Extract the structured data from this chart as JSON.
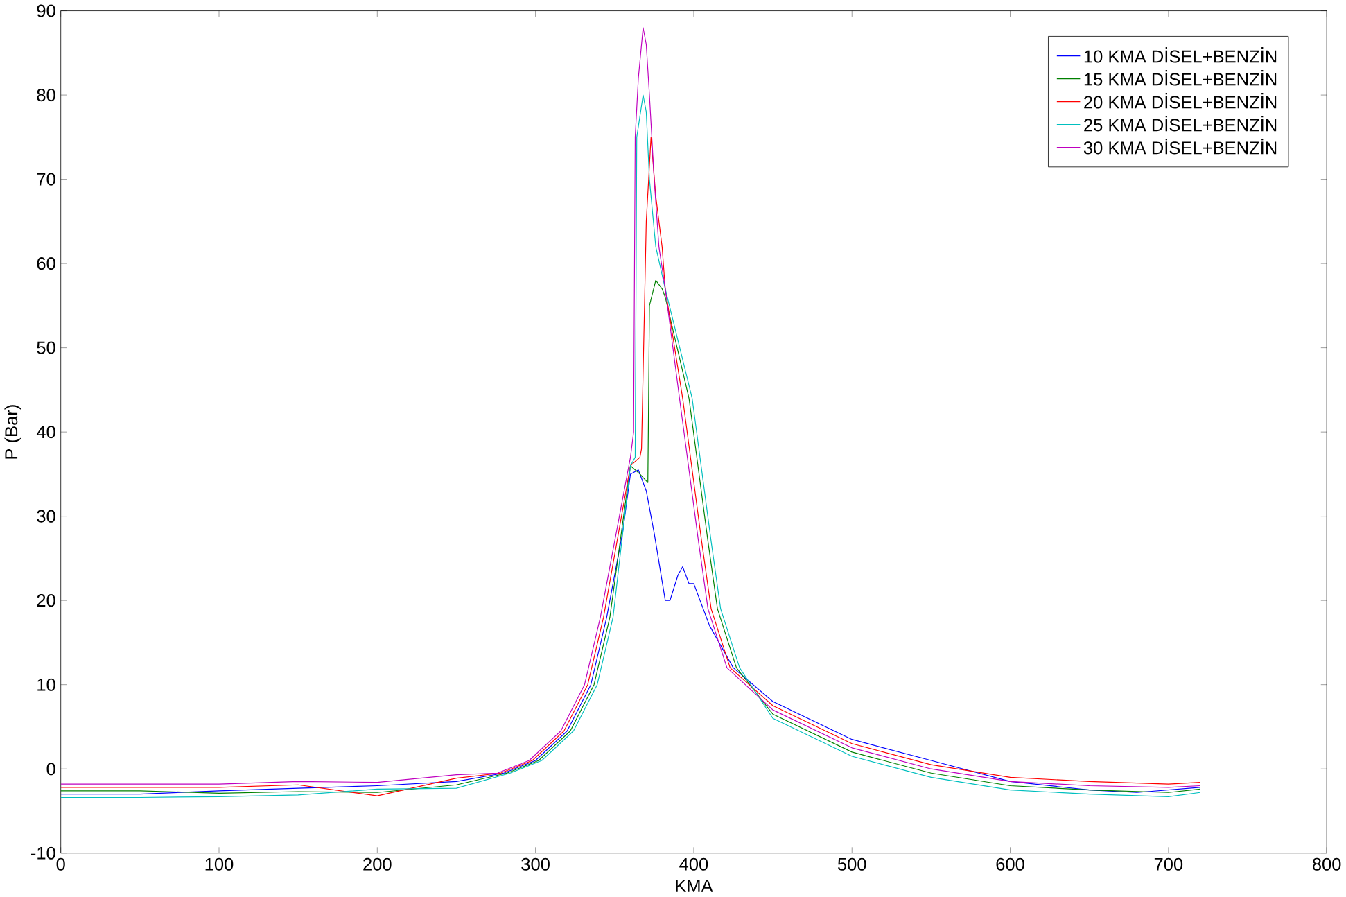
{
  "chart_data": {
    "type": "line",
    "xlabel": "KMA",
    "ylabel": "P (Bar)",
    "xlim": [
      0,
      800
    ],
    "ylim": [
      -10,
      90
    ],
    "xticks": [
      0,
      100,
      200,
      300,
      400,
      500,
      600,
      700,
      800
    ],
    "yticks": [
      -10,
      0,
      10,
      20,
      30,
      40,
      50,
      60,
      70,
      80,
      90
    ],
    "grid": false,
    "legend": "top right",
    "line_style": "solid",
    "marker": "none",
    "series": [
      {
        "name": "10 KMA DİSEL+BENZİN",
        "color": "#0000ff",
        "x": [
          0,
          50,
          100,
          150,
          200,
          250,
          280,
          300,
          320,
          335,
          345,
          355,
          360,
          365,
          370,
          375,
          382,
          385,
          390,
          393,
          397,
          400,
          410,
          425,
          450,
          500,
          550,
          600,
          650,
          680,
          720
        ],
        "values": [
          -3,
          -3,
          -2.6,
          -2.3,
          -2,
          -1.5,
          -0.5,
          1,
          4.5,
          10,
          18,
          28,
          35,
          35.5,
          33,
          28,
          20,
          20,
          23,
          24,
          22,
          22,
          17,
          12,
          8,
          3.5,
          1,
          -1.5,
          -2.5,
          -2.8,
          -2.2
        ]
      },
      {
        "name": "15 KMA DİSEL+BENZİN",
        "color": "#008000",
        "x": [
          0,
          50,
          100,
          150,
          200,
          250,
          282,
          302,
          322,
          337,
          347,
          360,
          366,
          371,
          372,
          376,
          380,
          382,
          397,
          409,
          415,
          427,
          450,
          500,
          550,
          600,
          650,
          700,
          720
        ],
        "values": [
          -2.6,
          -2.6,
          -2.9,
          -2.7,
          -2.8,
          -1.9,
          -0.5,
          1,
          4.5,
          10,
          18,
          36,
          35,
          34,
          55,
          58,
          57,
          56,
          44,
          27,
          19,
          12,
          6.5,
          2,
          -0.5,
          -2,
          -2.5,
          -2.8,
          -2.4
        ]
      },
      {
        "name": "20 KMA DİSEL+BENZİN",
        "color": "#ff0000",
        "x": [
          0,
          50,
          100,
          150,
          200,
          250,
          278,
          298,
          318,
          333,
          343,
          360,
          366,
          367,
          370,
          373,
          376,
          380,
          382,
          393,
          405,
          411,
          423,
          450,
          500,
          550,
          600,
          650,
          700,
          720
        ],
        "values": [
          -2.2,
          -2.2,
          -2.2,
          -1.9,
          -3.2,
          -1.1,
          -0.5,
          1,
          4.5,
          10,
          18,
          36,
          37,
          38,
          65,
          75,
          68,
          62,
          57,
          44,
          27,
          19,
          12,
          7.5,
          3,
          0.5,
          -1,
          -1.5,
          -1.8,
          -1.6
        ]
      },
      {
        "name": "25 KMA DİSEL+BENZİN",
        "color": "#00bfbf",
        "x": [
          0,
          50,
          100,
          150,
          200,
          250,
          284,
          304,
          324,
          339,
          349,
          360,
          363,
          364,
          368,
          370,
          372,
          376,
          382,
          399,
          411,
          417,
          429,
          450,
          500,
          550,
          600,
          650,
          700,
          720
        ],
        "values": [
          -3.4,
          -3.4,
          -3.3,
          -3.1,
          -2.4,
          -2.3,
          -0.5,
          1,
          4.5,
          10,
          18,
          36,
          37,
          75,
          80,
          78,
          70,
          62,
          57,
          44,
          27,
          19,
          12,
          6,
          1.5,
          -1,
          -2.5,
          -3,
          -3.3,
          -2.8
        ]
      },
      {
        "name": "30 KMA DİSEL+BENZİN",
        "color": "#bf00bf",
        "x": [
          0,
          50,
          100,
          150,
          200,
          250,
          276,
          296,
          316,
          331,
          341,
          360,
          362,
          363,
          365,
          368,
          370,
          372,
          375,
          378,
          382,
          391,
          403,
          409,
          421,
          450,
          500,
          550,
          600,
          650,
          700,
          720
        ],
        "values": [
          -1.8,
          -1.8,
          -1.8,
          -1.5,
          -1.6,
          -0.7,
          -0.5,
          1,
          4.5,
          10,
          18,
          37,
          40,
          75,
          82,
          88,
          86,
          80,
          70,
          62,
          57,
          44,
          27,
          19,
          12,
          7,
          2.5,
          0,
          -1.5,
          -2,
          -2.2,
          -2
        ]
      }
    ]
  }
}
